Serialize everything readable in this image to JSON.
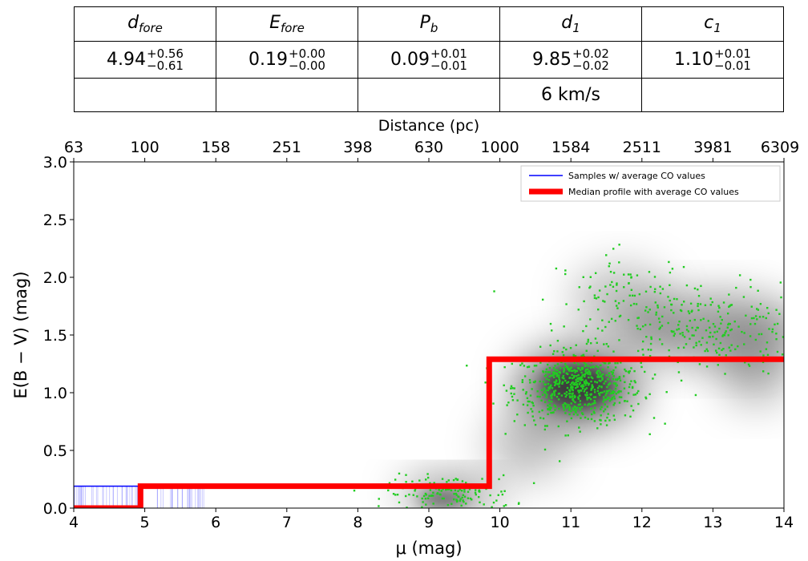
{
  "table": {
    "headers": [
      {
        "base": "d",
        "sub": "fore"
      },
      {
        "base": "E",
        "sub": "fore"
      },
      {
        "base": "P",
        "sub": "b"
      },
      {
        "base": "d",
        "sub": "1"
      },
      {
        "base": "c",
        "sub": "1"
      }
    ],
    "values": [
      {
        "value": "4.94",
        "plus": "+0.56",
        "minus": "−0.61"
      },
      {
        "value": "0.19",
        "plus": "+0.00",
        "minus": "−0.00"
      },
      {
        "value": "0.09",
        "plus": "+0.01",
        "minus": "−0.01"
      },
      {
        "value": "9.85",
        "plus": "+0.02",
        "minus": "−0.02"
      },
      {
        "value": "1.10",
        "plus": "+0.01",
        "minus": "−0.01"
      }
    ],
    "extra_row": [
      "",
      "",
      "",
      "6 km/s",
      ""
    ]
  },
  "chart_data": {
    "type": "line",
    "xlabel": "μ (mag)",
    "ylabel": "E(B − V) (mag)",
    "top_xlabel": "Distance (pc)",
    "xlim": [
      4,
      14
    ],
    "ylim": [
      0,
      3.0
    ],
    "xticks": [
      4,
      5,
      6,
      7,
      8,
      9,
      10,
      11,
      12,
      13,
      14
    ],
    "yticks": [
      0.0,
      0.5,
      1.0,
      1.5,
      2.0,
      2.5,
      3.0
    ],
    "ytick_labels": [
      "0.0",
      "0.5",
      "1.0",
      "1.5",
      "2.0",
      "2.5",
      "3.0"
    ],
    "top_ticks": [
      {
        "mu": 4,
        "label": "63"
      },
      {
        "mu": 5,
        "label": "100"
      },
      {
        "mu": 6,
        "label": "158"
      },
      {
        "mu": 7,
        "label": "251"
      },
      {
        "mu": 8,
        "label": "398"
      },
      {
        "mu": 9,
        "label": "630"
      },
      {
        "mu": 10,
        "label": "1000"
      },
      {
        "mu": 11,
        "label": "1584"
      },
      {
        "mu": 12,
        "label": "2511"
      },
      {
        "mu": 13,
        "label": "3981"
      },
      {
        "mu": 14,
        "label": "6309"
      }
    ],
    "legend_position": "top-right",
    "series": [
      {
        "name": "Samples  w/ average CO values",
        "color": "#0000ff",
        "x": [
          4,
          4.94,
          4.94,
          9.85,
          9.85,
          14
        ],
        "y": [
          0.19,
          0.19,
          0.19,
          0.19,
          1.29,
          1.29
        ]
      },
      {
        "name": "Median profile with average CO values",
        "color": "#ff0000",
        "x": [
          4,
          4.94,
          4.94,
          9.85,
          9.85,
          14
        ],
        "y": [
          0.0,
          0.0,
          0.19,
          0.19,
          1.29,
          1.29
        ]
      }
    ],
    "stars_color": "#22cc22",
    "density_color": "#000000",
    "star_clusters": [
      {
        "x": 11.1,
        "y": 1.05,
        "sx": 0.45,
        "sy": 0.16,
        "n": 650
      },
      {
        "x": 12.9,
        "y": 1.55,
        "sx": 0.75,
        "sy": 0.2,
        "n": 260
      },
      {
        "x": 9.3,
        "y": 0.12,
        "sx": 0.45,
        "sy": 0.08,
        "n": 160
      },
      {
        "x": 11.8,
        "y": 1.85,
        "sx": 0.5,
        "sy": 0.18,
        "n": 90
      }
    ]
  }
}
